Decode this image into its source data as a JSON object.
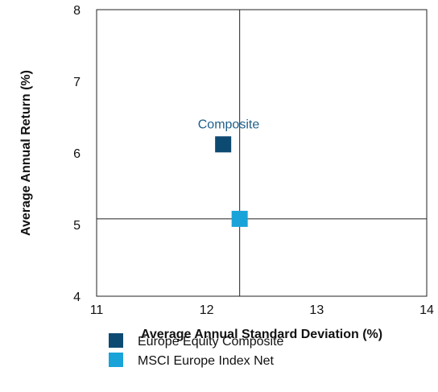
{
  "chart_data": {
    "type": "scatter",
    "title": "",
    "xlabel": "Average Annual Standard Deviation (%)",
    "ylabel": "Average Annual Return (%)",
    "xlim": [
      11,
      14
    ],
    "ylim": [
      4,
      8
    ],
    "xticks": [
      "11",
      "12",
      "13",
      "14"
    ],
    "yticks": [
      "4",
      "5",
      "6",
      "7",
      "8"
    ],
    "grid": false,
    "reference_lines": {
      "x": 12.3,
      "y": 5.08
    },
    "series": [
      {
        "name": "Europe Equity Composite",
        "color": "#0d4a72",
        "marker": "square",
        "x": [
          12.15
        ],
        "y": [
          6.12
        ]
      },
      {
        "name": "MSCI Europe Index Net",
        "color": "#1aa3d9",
        "marker": "square",
        "x": [
          12.3
        ],
        "y": [
          5.08
        ]
      }
    ],
    "annotations": [
      {
        "text": "Composite",
        "x": 12.2,
        "y": 6.4
      }
    ],
    "legend_position": "bottom"
  }
}
